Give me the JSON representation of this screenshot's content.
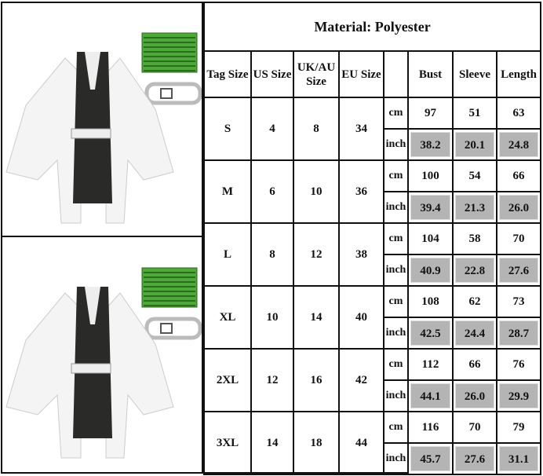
{
  "title": "Material: Polyester",
  "headers": [
    "Tag Size",
    "US Size",
    "UK/AU Size",
    "EU Size",
    "",
    "Bust",
    "Sleeve",
    "Length"
  ],
  "units": [
    "cm",
    "inch"
  ],
  "rows": [
    {
      "tag": "S",
      "us": "4",
      "uk": "8",
      "eu": "34",
      "cm": [
        "97",
        "51",
        "63"
      ],
      "inch": [
        "38.2",
        "20.1",
        "24.8"
      ]
    },
    {
      "tag": "M",
      "us": "6",
      "uk": "10",
      "eu": "36",
      "cm": [
        "100",
        "54",
        "66"
      ],
      "inch": [
        "39.4",
        "21.3",
        "26.0"
      ]
    },
    {
      "tag": "L",
      "us": "8",
      "uk": "12",
      "eu": "38",
      "cm": [
        "104",
        "58",
        "70"
      ],
      "inch": [
        "40.9",
        "22.8",
        "27.6"
      ]
    },
    {
      "tag": "XL",
      "us": "10",
      "uk": "14",
      "eu": "40",
      "cm": [
        "108",
        "62",
        "73"
      ],
      "inch": [
        "42.5",
        "24.4",
        "28.7"
      ]
    },
    {
      "tag": "2XL",
      "us": "12",
      "uk": "16",
      "eu": "42",
      "cm": [
        "112",
        "66",
        "76"
      ],
      "inch": [
        "44.1",
        "26.0",
        "29.9"
      ]
    },
    {
      "tag": "3XL",
      "us": "14",
      "uk": "18",
      "eu": "44",
      "cm": [
        "116",
        "70",
        "79"
      ],
      "inch": [
        "45.7",
        "27.6",
        "31.1"
      ]
    }
  ],
  "colors": {
    "inch_cell": "#b4b4b4",
    "sash": "#4fa83a",
    "border": "#111111"
  }
}
